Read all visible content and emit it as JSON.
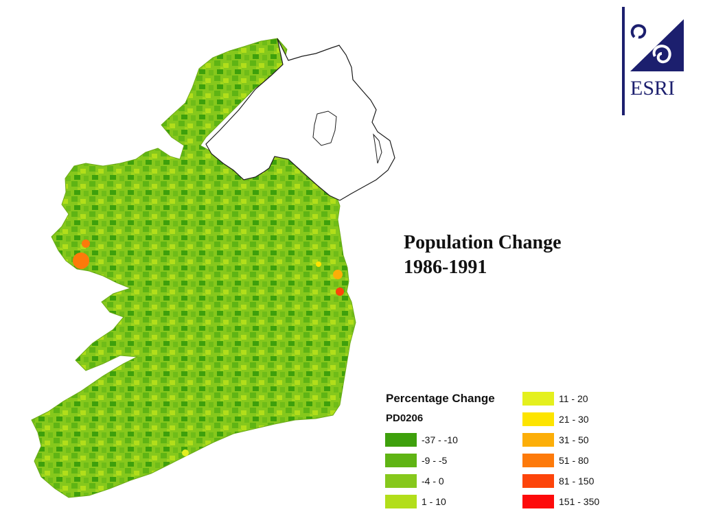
{
  "title": {
    "line1": "Population Change",
    "line2": "1986-1991"
  },
  "logo": {
    "text": "ESRI",
    "icon": "esri-logo-icon"
  },
  "legend": {
    "title": "Percentage Change",
    "field": "PD0206",
    "classes": [
      {
        "label": "-37 - -10",
        "color": "#3ea00c"
      },
      {
        "label": "-9 - -5",
        "color": "#5fb414"
      },
      {
        "label": "-4 - 0",
        "color": "#86c81c"
      },
      {
        "label": "1 - 10",
        "color": "#b2de1a"
      },
      {
        "label": "11 - 20",
        "color": "#e4f01e"
      },
      {
        "label": "21 - 30",
        "color": "#fde400"
      },
      {
        "label": "31 - 50",
        "color": "#fcae08"
      },
      {
        "label": "51 - 80",
        "color": "#fd7a0a"
      },
      {
        "label": "81 - 150",
        "color": "#fd440a"
      },
      {
        "label": "151 - 350",
        "color": "#fd0a0a"
      }
    ]
  },
  "colors": {
    "republic_fill": "#86c81c",
    "northern_ireland_fill": "#ffffff",
    "outline": "#1a1a1a",
    "logo_navy": "#1c1f6e"
  }
}
